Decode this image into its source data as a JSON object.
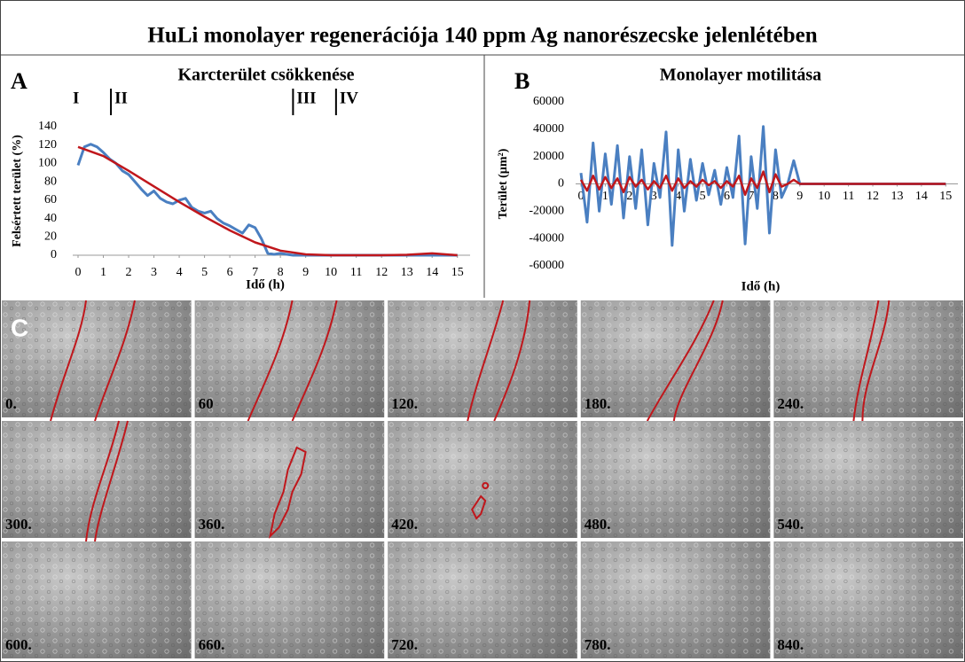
{
  "title": "HuLi monolayer regenerációja 140 ppm Ag nanorészecske jelenlétében",
  "chart_data": [
    {
      "type": "line",
      "panel": "A",
      "title": "Karcterület csökkenése",
      "ylabel": "Felsértett terület (%)",
      "xlabel": "Idő (h)",
      "xlim": [
        0,
        15.5
      ],
      "xticks": [
        0,
        1,
        2,
        3,
        4,
        5,
        6,
        7,
        8,
        9,
        10,
        11,
        12,
        13,
        14,
        15
      ],
      "ylim": [
        0,
        140
      ],
      "yticks": [
        0,
        20,
        40,
        60,
        80,
        100,
        120,
        140
      ],
      "phase_labels": [
        "I",
        "II",
        "III",
        "IV"
      ],
      "phase_lines": [
        1.3,
        8.5,
        10.2
      ],
      "series": [
        {
          "color": "#4a7fc1",
          "x": [
            0,
            0.25,
            0.5,
            0.75,
            1,
            1.25,
            1.5,
            1.75,
            2,
            2.25,
            2.5,
            2.75,
            3,
            3.25,
            3.5,
            3.75,
            4,
            4.25,
            4.5,
            4.75,
            5,
            5.25,
            5.5,
            5.75,
            6,
            6.25,
            6.5,
            6.75,
            7,
            7.25,
            7.5,
            7.75,
            8,
            8.25,
            8.5,
            9,
            10,
            11,
            12,
            13,
            14,
            15
          ],
          "values": [
            98,
            118,
            121,
            118,
            112,
            105,
            100,
            92,
            88,
            80,
            72,
            65,
            70,
            62,
            58,
            56,
            60,
            62,
            52,
            48,
            46,
            48,
            40,
            35,
            32,
            28,
            24,
            33,
            30,
            18,
            2,
            1,
            2,
            1,
            0,
            0,
            0,
            0,
            0,
            0,
            0,
            0
          ]
        },
        {
          "color": "#c0171c",
          "x": [
            0,
            1,
            2,
            3,
            4,
            5,
            6,
            7,
            8,
            9,
            10,
            11,
            12,
            13,
            14,
            15
          ],
          "values": [
            118,
            108,
            92,
            75,
            58,
            42,
            27,
            14,
            5,
            1,
            0,
            0,
            0,
            0.5,
            2,
            0
          ]
        }
      ]
    },
    {
      "type": "line",
      "panel": "B",
      "title": "Monolayer motilitása",
      "ylabel": "Terület (µm²)",
      "xlabel": "Idő (h)",
      "xlim": [
        0,
        15.5
      ],
      "xticks": [
        0,
        1,
        2,
        3,
        4,
        5,
        6,
        7,
        8,
        9,
        10,
        11,
        12,
        13,
        14,
        15
      ],
      "ylim": [
        -60000,
        60000
      ],
      "yticks": [
        -60000,
        -40000,
        -20000,
        0,
        20000,
        40000,
        60000
      ],
      "series": [
        {
          "color": "#4a7fc1",
          "x": [
            0,
            0.25,
            0.5,
            0.75,
            1,
            1.25,
            1.5,
            1.75,
            2,
            2.25,
            2.5,
            2.75,
            3,
            3.25,
            3.5,
            3.75,
            4,
            4.25,
            4.5,
            4.75,
            5,
            5.25,
            5.5,
            5.75,
            6,
            6.25,
            6.5,
            6.75,
            7,
            7.25,
            7.5,
            7.75,
            8,
            8.25,
            8.5,
            8.75,
            9,
            10,
            11,
            12,
            13,
            14,
            15
          ],
          "values": [
            8000,
            -28000,
            30000,
            -20000,
            22000,
            -15000,
            28000,
            -25000,
            20000,
            -18000,
            25000,
            -30000,
            15000,
            -10000,
            38000,
            -45000,
            25000,
            -20000,
            18000,
            -12000,
            15000,
            -8000,
            10000,
            -15000,
            12000,
            -10000,
            35000,
            -44000,
            20000,
            -18000,
            42000,
            -36000,
            25000,
            -10000,
            0,
            17000,
            0,
            0,
            0,
            0,
            0,
            0,
            0
          ]
        },
        {
          "color": "#c0171c",
          "x": [
            0,
            0.25,
            0.5,
            0.75,
            1,
            1.25,
            1.5,
            1.75,
            2,
            2.25,
            2.5,
            2.75,
            3,
            3.25,
            3.5,
            3.75,
            4,
            4.25,
            4.5,
            4.75,
            5,
            5.25,
            5.5,
            5.75,
            6,
            6.25,
            6.5,
            6.75,
            7,
            7.25,
            7.5,
            7.75,
            8,
            8.25,
            8.5,
            8.75,
            9,
            10,
            11,
            12,
            13,
            14,
            15
          ],
          "values": [
            3000,
            -5000,
            6000,
            -4000,
            5000,
            -3000,
            4000,
            -6000,
            5000,
            -2000,
            3000,
            -4000,
            2000,
            -3000,
            6000,
            -5000,
            4000,
            -3000,
            2000,
            -2000,
            3000,
            -1000,
            2000,
            -3000,
            2000,
            -2000,
            6000,
            -8000,
            4000,
            -3000,
            9000,
            -6000,
            7000,
            -2000,
            0,
            3000,
            0,
            0,
            0,
            0,
            0,
            0,
            0
          ]
        }
      ]
    }
  ],
  "panel_c": {
    "label": "C",
    "frames": [
      "0.",
      "60",
      "120.",
      "180.",
      "240.",
      "300.",
      "360.",
      "420.",
      "480.",
      "540.",
      "600.",
      "660.",
      "720.",
      "780.",
      "840."
    ]
  }
}
